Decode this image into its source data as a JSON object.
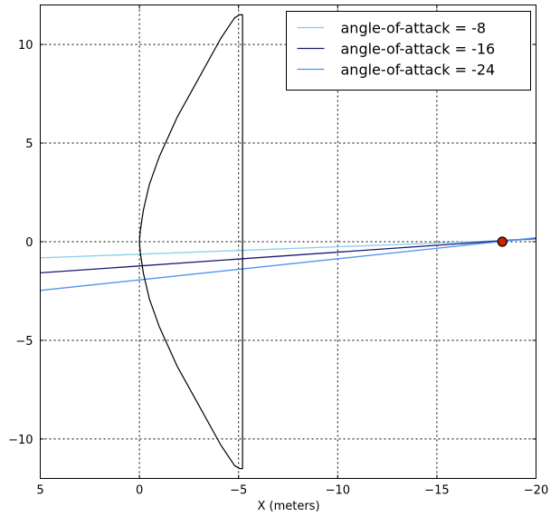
{
  "chart_data": {
    "type": "line",
    "xlabel": "X (meters)",
    "ylabel": "",
    "xlim": [
      5,
      -20
    ],
    "ylim": [
      -12,
      12
    ],
    "x_ticks": [
      5,
      0,
      -5,
      -10,
      -15,
      -20
    ],
    "x_tick_labels": [
      "5",
      "0",
      "−5",
      "−10",
      "−15",
      "−20"
    ],
    "y_ticks": [
      10,
      5,
      0,
      -5,
      -10
    ],
    "y_tick_labels": [
      "10",
      "5",
      "0",
      "−5",
      "−10"
    ],
    "grid": true,
    "legend_position": "top-right",
    "series": [
      {
        "name": "angle-of-attack = -8",
        "color": "#87ceeb",
        "x": [
          5,
          -20
        ],
        "y": [
          -0.82,
          0.12
        ]
      },
      {
        "name": "angle-of-attack = -16",
        "color": "#191970",
        "x": [
          5,
          -20
        ],
        "y": [
          -1.58,
          0.17
        ]
      },
      {
        "name": "angle-of-attack = -24",
        "color": "#4f94ef",
        "x": [
          5,
          -20
        ],
        "y": [
          -2.47,
          0.2
        ]
      }
    ],
    "shape_outline": {
      "color": "#000000",
      "x": [
        -5.05,
        -4.8,
        -4.1,
        -3.0,
        -1.9,
        -1.0,
        -0.5,
        -0.2,
        -0.05,
        0.0,
        -0.05,
        -0.2,
        -0.5,
        -1.0,
        -1.9,
        -3.0,
        -4.1,
        -4.8,
        -5.05,
        -5.2,
        -5.2,
        -5.05
      ],
      "y": [
        11.5,
        11.35,
        10.3,
        8.3,
        6.3,
        4.3,
        2.9,
        1.6,
        0.6,
        0.0,
        -0.6,
        -1.6,
        -2.9,
        -4.3,
        -6.3,
        -8.3,
        -10.3,
        -11.35,
        -11.5,
        -11.5,
        11.5,
        11.5
      ]
    },
    "marker": {
      "x": -18.3,
      "y": 0.0,
      "face_color": "#cc2200",
      "edge_color": "#000000"
    }
  }
}
